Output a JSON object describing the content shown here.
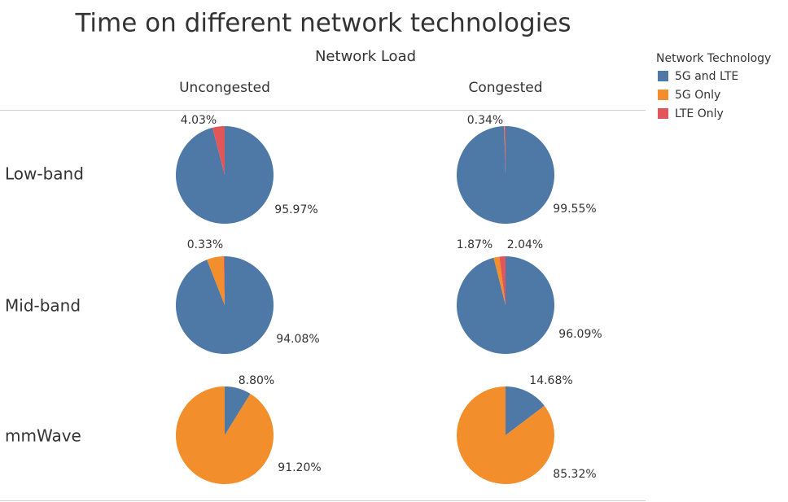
{
  "title": "Time on different network technologies",
  "column_header": "Network Load",
  "columns": [
    "Uncongested",
    "Congested"
  ],
  "rows": [
    "Low-band",
    "Mid-band",
    "mmWave"
  ],
  "legend": {
    "title": "Network Technology",
    "items": [
      "5G and LTE",
      "5G Only",
      "LTE Only"
    ],
    "colors": [
      "#4e79a7",
      "#f28e2b",
      "#e15759"
    ]
  },
  "chart_data": [
    {
      "type": "pie",
      "values": [
        95.97,
        null,
        4.03
      ],
      "value_labels": [
        "95.97%",
        null,
        "4.03%"
      ]
    },
    {
      "type": "pie",
      "values": [
        99.55,
        0.11,
        0.34
      ],
      "value_labels": [
        "99.55%",
        null,
        "0.34%"
      ]
    },
    {
      "type": "pie",
      "values": [
        94.08,
        5.59,
        0.33
      ],
      "value_labels": [
        "94.08%",
        null,
        "0.33%"
      ]
    },
    {
      "type": "pie",
      "values": [
        96.09,
        1.87,
        2.04
      ],
      "value_labels": [
        "96.09%",
        "1.87%",
        "2.04%"
      ]
    },
    {
      "type": "pie",
      "values": [
        8.8,
        91.2,
        null
      ],
      "value_labels": [
        "8.80%",
        "91.20%",
        null
      ]
    },
    {
      "type": "pie",
      "values": [
        14.68,
        85.32,
        null
      ],
      "value_labels": [
        "14.68%",
        "85.32%",
        null
      ]
    }
  ]
}
